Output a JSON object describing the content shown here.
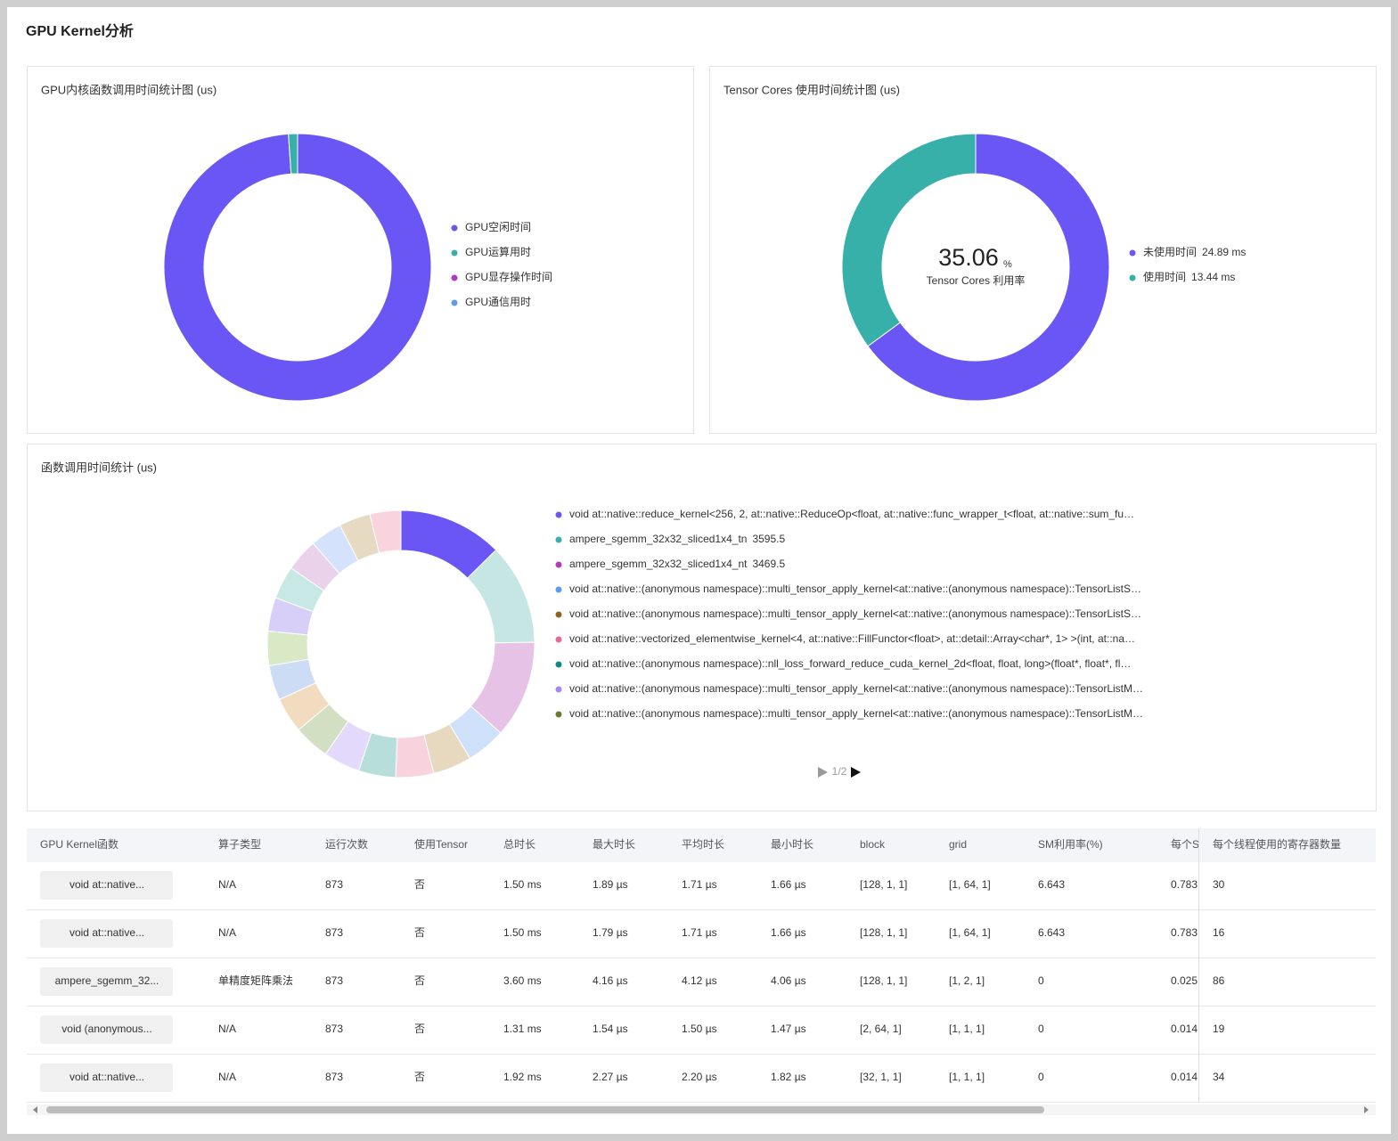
{
  "title": "GPU Kernel分析",
  "chart_data": [
    {
      "type": "pie",
      "title": "GPU内核函数调用时间统计图 (us)",
      "categories": [
        "GPU空闲时间",
        "GPU运算用时",
        "GPU显存操作时间",
        "GPU通信用时"
      ],
      "values": [
        98.9,
        1.1,
        0,
        0
      ],
      "colors": [
        "#6a55f5",
        "#36b0a8",
        "#b03bbd",
        "#5a9cf0"
      ]
    },
    {
      "type": "pie",
      "title": "Tensor Cores 使用时间统计图 (us)",
      "categories": [
        "未使用时间",
        "使用时间"
      ],
      "values": [
        24.89,
        13.44
      ],
      "value_labels": [
        "24.89 ms",
        "13.44 ms"
      ],
      "colors": [
        "#6a55f5",
        "#36b0a8"
      ],
      "center_value": 35.06,
      "center_unit": "%",
      "center_label": "Tensor Cores 利用率"
    },
    {
      "type": "pie",
      "title": "函数调用时间统计 (us)",
      "categories": [
        "void at::native::reduce_kernel<256, 2, at::native::ReduceOp<float, at::native::func_wrapper_t<float, at::native::sum_fu…",
        "ampere_sgemm_32x32_sliced1x4_tn",
        "ampere_sgemm_32x32_sliced1x4_nt",
        "void at::native::(anonymous namespace)::multi_tensor_apply_kernel<at::native::(anonymous namespace)::TensorListS…",
        "void at::native::(anonymous namespace)::multi_tensor_apply_kernel<at::native::(anonymous namespace)::TensorListS…",
        "void at::native::vectorized_elementwise_kernel<4, at::native::FillFunctor<float>, at::detail::Array<char*, 1> >(int, at::na…",
        "void at::native::(anonymous namespace)::nll_loss_forward_reduce_cuda_kernel_2d<float, float, long>(float*, float*, fl…",
        "void at::native::(anonymous namespace)::multi_tensor_apply_kernel<at::native::(anonymous namespace)::TensorListM…",
        "void at::native::(anonymous namespace)::multi_tensor_apply_kernel<at::native::(anonymous namespace)::TensorListM…",
        null,
        null,
        null,
        null,
        null,
        null,
        null,
        null,
        null
      ],
      "values": [
        3700,
        3595.5,
        3469.5,
        1400,
        1380,
        1350,
        1320,
        1300,
        1280,
        1260,
        1240,
        1220,
        1200,
        1180,
        1160,
        1140,
        1120,
        1100
      ],
      "colors": [
        "#6a55f5",
        "#c5e6e3",
        "#e6c3e6",
        "#cfe0fb",
        "#e6d9c0",
        "#f8d3dd",
        "#b8dedb",
        "#e3d9fb",
        "#d2dfc3",
        "#f2dcc0",
        "#cddcf5",
        "#d9e8c5",
        "#d8cff9",
        "#c8e8e5",
        "#ead2ea",
        "#d4e2fb",
        "#e6dac2",
        "#f9d4de"
      ],
      "legend_colors": [
        "#6a55f5",
        "#36b0a8",
        "#b03bbd",
        "#5a9cf0",
        "#8a6418",
        "#e8688d",
        "#0a8a80",
        "#a685f5",
        "#6a7a2a"
      ],
      "legend_page": "1/2"
    }
  ],
  "table": {
    "columns": [
      "GPU Kernel函数",
      "算子类型",
      "运行次数",
      "使用Tensor",
      "总时长",
      "最大时长",
      "平均时长",
      "最小时长",
      "block",
      "grid",
      "SM利用率(%)",
      "每个S",
      "每个线程使用的寄存器数量"
    ],
    "rows": [
      [
        "void at::native...",
        "N/A",
        "873",
        "否",
        "1.50 ms",
        "1.89 µs",
        "1.71 µs",
        "1.66 µs",
        "[128, 1, 1]",
        "[1, 64, 1]",
        "6.643",
        "0.783",
        "30"
      ],
      [
        "void at::native...",
        "N/A",
        "873",
        "否",
        "1.50 ms",
        "1.79 µs",
        "1.71 µs",
        "1.66 µs",
        "[128, 1, 1]",
        "[1, 64, 1]",
        "6.643",
        "0.783",
        "16"
      ],
      [
        "ampere_sgemm_32...",
        "单精度矩阵乘法",
        "873",
        "否",
        "3.60 ms",
        "4.16 µs",
        "4.12 µs",
        "4.06 µs",
        "[128, 1, 1]",
        "[1, 2, 1]",
        "0",
        "0.025",
        "86"
      ],
      [
        "void (anonymous...",
        "N/A",
        "873",
        "否",
        "1.31 ms",
        "1.54 µs",
        "1.50 µs",
        "1.47 µs",
        "[2, 64, 1]",
        "[1, 1, 1]",
        "0",
        "0.014",
        "19"
      ],
      [
        "void at::native...",
        "N/A",
        "873",
        "否",
        "1.92 ms",
        "2.27 µs",
        "2.20 µs",
        "1.82 µs",
        "[32, 1, 1]",
        "[1, 1, 1]",
        "0",
        "0.014",
        "34"
      ]
    ]
  }
}
